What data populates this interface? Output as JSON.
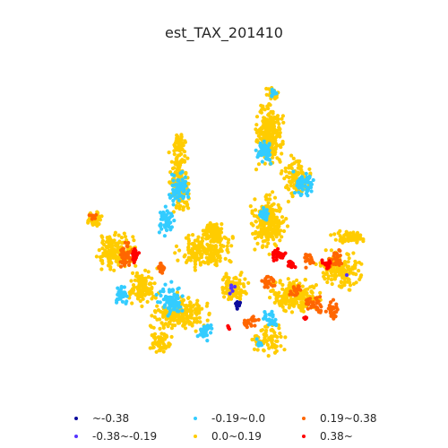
{
  "title": "est_TAX_201410",
  "colors": {
    "c1": "#0b0b9c",
    "c2": "#5533ff",
    "c3": "#33ccff",
    "c4": "#ffcc00",
    "c5": "#ff6600",
    "c6": "#ff0000"
  },
  "legend": [
    {
      "label": "~-0.38",
      "color": "#0b0b9c"
    },
    {
      "label": "-0.38~-0.19",
      "color": "#5533ff"
    },
    {
      "label": "-0.19~0.0",
      "color": "#33ccff"
    },
    {
      "label": "0.0~0.19",
      "color": "#ffcc00"
    },
    {
      "label": "0.19~0.38",
      "color": "#ff6600"
    },
    {
      "label": "0.38~",
      "color": "#ff0000"
    }
  ]
}
